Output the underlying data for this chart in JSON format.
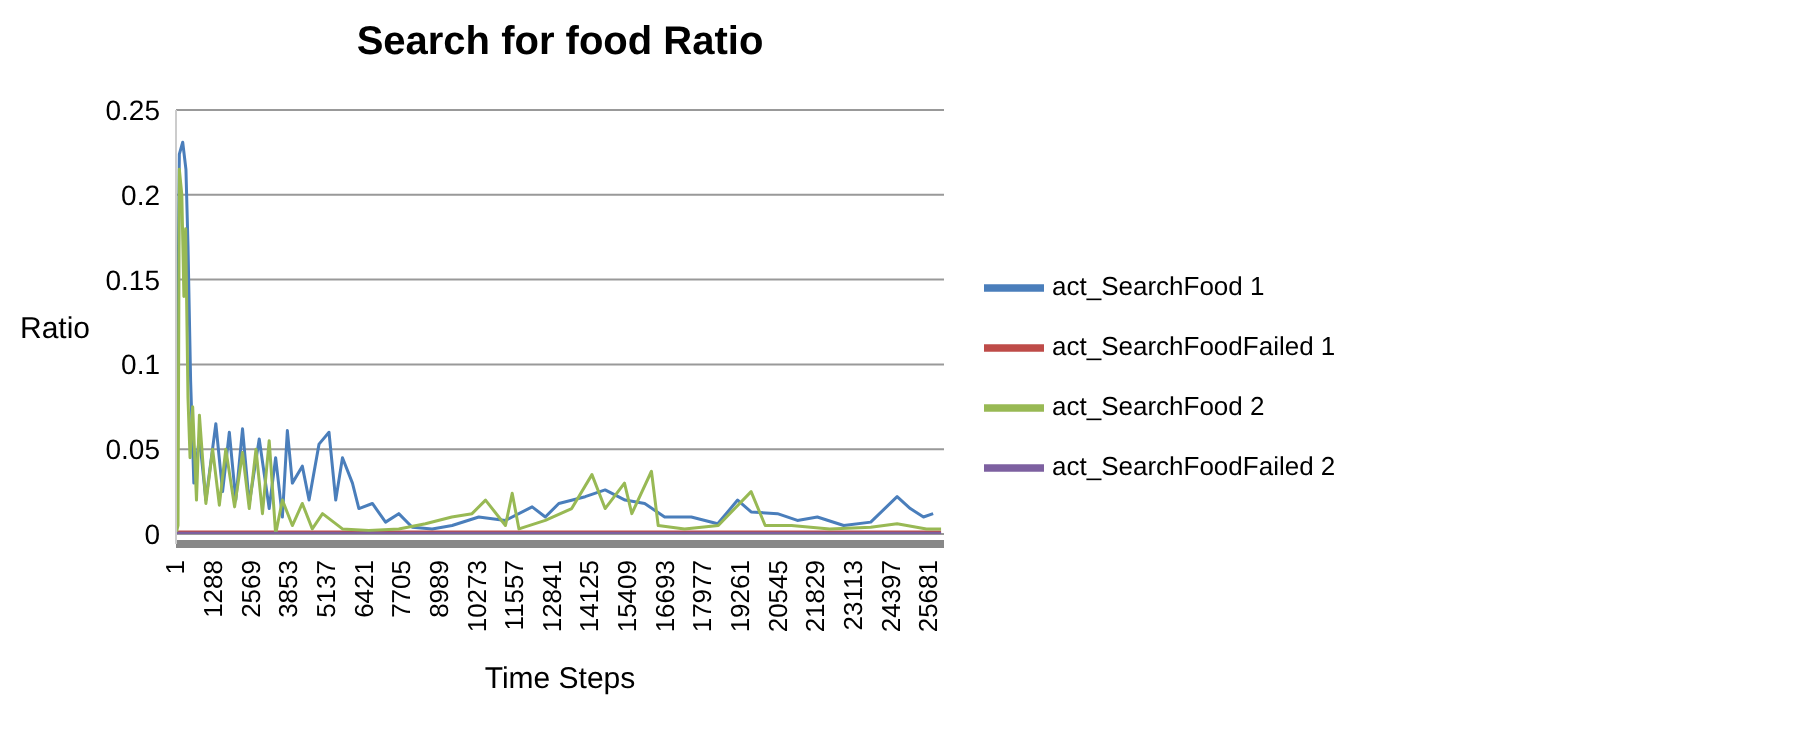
{
  "chart_data": {
    "type": "line",
    "title": "Search for food Ratio",
    "xlabel": "Time Steps",
    "ylabel": "Ratio",
    "xlim": [
      1,
      26200
    ],
    "xticks": [
      1,
      1288,
      2569,
      3853,
      5137,
      6421,
      7705,
      8989,
      10273,
      11557,
      12841,
      14125,
      15409,
      16693,
      17977,
      19261,
      20545,
      21829,
      23113,
      24397,
      25681
    ],
    "ylim": [
      0,
      0.25
    ],
    "yticks": [
      0,
      0.05,
      0.1,
      0.15,
      0.2,
      0.25
    ],
    "grid": "y",
    "legend": "right",
    "marker": "none",
    "line_style": "solid",
    "series": [
      {
        "name": "act_SearchFood 1",
        "color": "#4a7ebb",
        "x": [
          1,
          115,
          230,
          340,
          410,
          500,
          610,
          800,
          1020,
          1360,
          1590,
          1820,
          2040,
          2270,
          2500,
          2840,
          3180,
          3400,
          3630,
          3800,
          3970,
          4310,
          4540,
          4880,
          5220,
          5450,
          5680,
          6020,
          6240,
          6700,
          7150,
          7600,
          8060,
          8740,
          9420,
          10330,
          11240,
          12150,
          12600,
          13060,
          13960,
          14640,
          15320,
          15990,
          16670,
          17580,
          18480,
          19160,
          19620,
          20520,
          21200,
          21880,
          22780,
          23700,
          24600,
          25050,
          25500,
          25830
        ],
        "values": [
          0,
          0.224,
          0.231,
          0.215,
          0.17,
          0.09,
          0.03,
          0.057,
          0.02,
          0.065,
          0.025,
          0.06,
          0.02,
          0.062,
          0.018,
          0.056,
          0.015,
          0.045,
          0.01,
          0.061,
          0.03,
          0.04,
          0.02,
          0.053,
          0.06,
          0.02,
          0.045,
          0.03,
          0.015,
          0.018,
          0.007,
          0.012,
          0.004,
          0.003,
          0.005,
          0.01,
          0.008,
          0.016,
          0.01,
          0.018,
          0.022,
          0.026,
          0.02,
          0.018,
          0.01,
          0.01,
          0.006,
          0.02,
          0.013,
          0.012,
          0.008,
          0.01,
          0.005,
          0.007,
          0.022,
          0.015,
          0.01,
          0.012
        ]
      },
      {
        "name": "act_SearchFoodFailed 1",
        "color": "#be4b48",
        "x": [
          1,
          26100
        ],
        "values": [
          0,
          0
        ]
      },
      {
        "name": "act_SearchFood 2",
        "color": "#98b954",
        "x": [
          1,
          70,
          115,
          200,
          270,
          330,
          410,
          480,
          570,
          700,
          800,
          1020,
          1250,
          1480,
          1700,
          2000,
          2270,
          2500,
          2730,
          2950,
          3180,
          3400,
          3630,
          3970,
          4310,
          4650,
          5000,
          5680,
          6580,
          7600,
          8510,
          9410,
          10100,
          10560,
          11240,
          11470,
          11700,
          12600,
          13500,
          14190,
          14640,
          15300,
          15550,
          16220,
          16450,
          17350,
          18500,
          19620,
          20100,
          21000,
          22300,
          23700,
          24600,
          25600,
          26100
        ],
        "values": [
          0,
          0.005,
          0.215,
          0.2,
          0.14,
          0.18,
          0.08,
          0.045,
          0.075,
          0.02,
          0.07,
          0.018,
          0.05,
          0.017,
          0.05,
          0.016,
          0.048,
          0.015,
          0.05,
          0.012,
          0.055,
          0,
          0.02,
          0.005,
          0.018,
          0.003,
          0.012,
          0.003,
          0.002,
          0.003,
          0.006,
          0.01,
          0.012,
          0.02,
          0.005,
          0.024,
          0.003,
          0.008,
          0.015,
          0.035,
          0.015,
          0.03,
          0.012,
          0.037,
          0.005,
          0.003,
          0.005,
          0.025,
          0.005,
          0.005,
          0.003,
          0.004,
          0.006,
          0.003,
          0.003
        ]
      },
      {
        "name": "act_SearchFoodFailed 2",
        "color": "#7d60a0",
        "x": [
          1,
          26100
        ],
        "values": [
          0,
          0
        ]
      }
    ]
  }
}
